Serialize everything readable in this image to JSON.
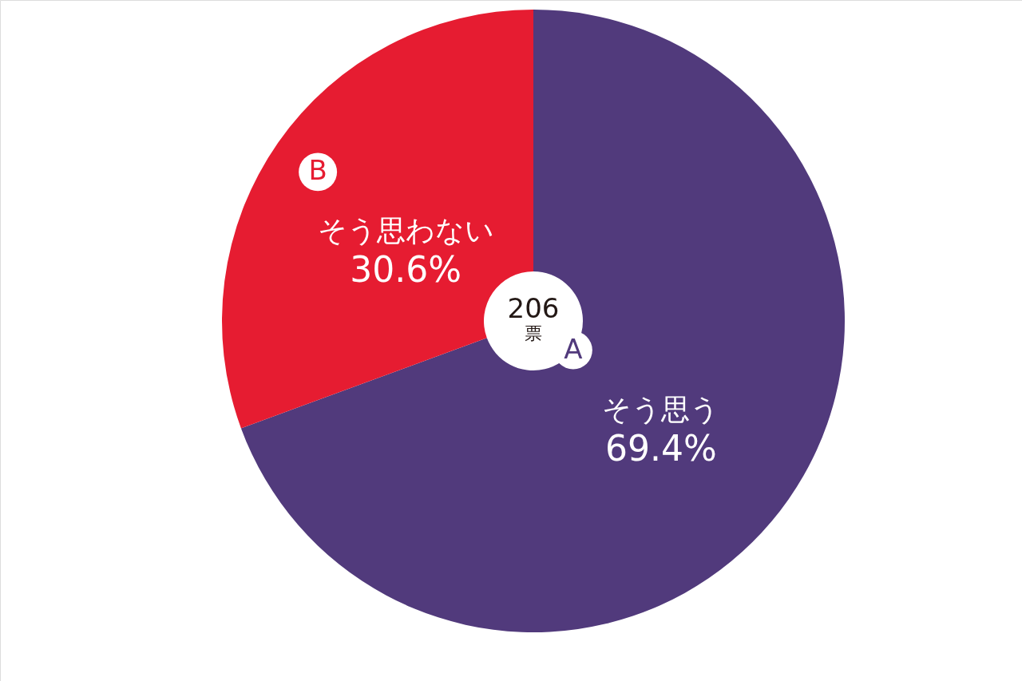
{
  "chart_data": {
    "type": "donut",
    "categories": [
      "そう思う",
      "そう思わない"
    ],
    "values": [
      69.4,
      30.6
    ],
    "colors": [
      "#513a7c",
      "#e61c31"
    ],
    "value_labels": [
      "69.4%",
      "30.6%"
    ],
    "annotations": [
      {
        "text": "A",
        "x": "そう思う"
      },
      {
        "text": "B",
        "x": "そう思わない"
      },
      "206",
      "票"
    ]
  }
}
